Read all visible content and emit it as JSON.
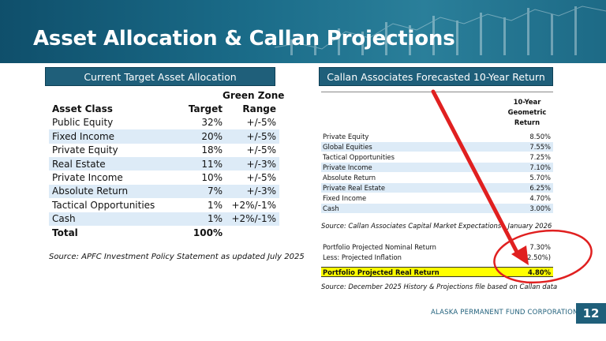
{
  "header": {
    "title": "Asset Allocation & Callan Projections"
  },
  "left": {
    "banner": "Current Target Asset Allocation",
    "green_zone_label": "Green Zone",
    "columns": [
      "Asset Class",
      "Target",
      "Range"
    ],
    "rows": [
      {
        "name": "Public Equity",
        "target": "32%",
        "range": "+/-5%"
      },
      {
        "name": "Fixed Income",
        "target": "20%",
        "range": "+/-5%"
      },
      {
        "name": "Private Equity",
        "target": "18%",
        "range": "+/-5%"
      },
      {
        "name": "Real Estate",
        "target": "11%",
        "range": "+/-3%"
      },
      {
        "name": "Private Income",
        "target": "10%",
        "range": "+/-5%"
      },
      {
        "name": "Absolute Return",
        "target": "7%",
        "range": "+/-3%"
      },
      {
        "name": "Tactical Opportunities",
        "target": "1%",
        "range": "+2%/-1%"
      },
      {
        "name": "Cash",
        "target": "1%",
        "range": "+2%/-1%"
      }
    ],
    "total": {
      "name": "Total",
      "target": "100%"
    },
    "source": "Source: APFC Investment Policy Statement as updated July 2025"
  },
  "right": {
    "banner": "Callan Associates Forecasted 10-Year Return",
    "col_head": [
      "10-Year",
      "Geometric",
      "Return"
    ],
    "rows": [
      {
        "name": "Private Equity",
        "value": "8.50%"
      },
      {
        "name": "Global Equities",
        "value": "7.55%"
      },
      {
        "name": "Tactical Opportunities",
        "value": "7.25%"
      },
      {
        "name": "Private Income",
        "value": "7.10%"
      },
      {
        "name": "Absolute Return",
        "value": "5.70%"
      },
      {
        "name": "Private Real Estate",
        "value": "6.25%"
      },
      {
        "name": "Fixed Income",
        "value": "4.70%"
      },
      {
        "name": "Cash",
        "value": "3.00%"
      }
    ],
    "source1": "Source: Callan Associates Capital Market Expectations - January 2026",
    "summary": {
      "nominal_label": "Portfolio Projected Nominal Return",
      "nominal_value": "7.30%",
      "inflation_label": "Less: Projected Inflation",
      "inflation_value": "(2.50%)",
      "real_label": "Portfolio Projected Real Return",
      "real_value": "4.80%"
    },
    "source2": "Source: December 2025 History & Projections file based on Callan data"
  },
  "footer": {
    "org": "ALASKA PERMANENT FUND CORPORATION",
    "page": "12"
  },
  "colors": {
    "brand": "#1f5f7a",
    "row_shade": "#ddebf7",
    "highlight": "#ffff00",
    "annotation": "#e02020"
  }
}
